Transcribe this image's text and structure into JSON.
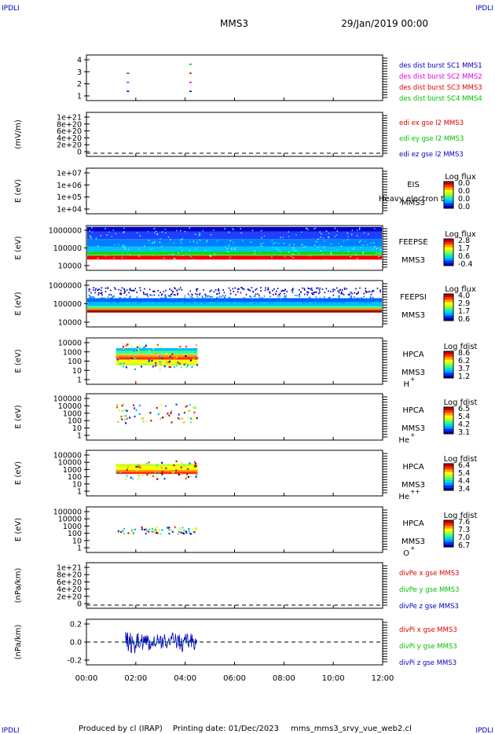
{
  "header": {
    "corner_label": "IPDLI",
    "title": "MMS3",
    "date": "29/Jan/2019 00:00"
  },
  "footer": {
    "produced_by": "Produced by cl (IRAP)",
    "printing_date": "Printing date: 01/Dec/2023",
    "filename": "mms_mms3_srvy_vue_web2.cl"
  },
  "colors": {
    "red": "#e00000",
    "green": "#00c000",
    "blue": "#0000c0",
    "magenta": "#e000e0"
  },
  "chart_data": [
    {
      "type": "scatter",
      "panel": "burst",
      "yticks": [
        "4",
        "3",
        "2",
        "1"
      ],
      "ylim": [
        0.5,
        4.5
      ],
      "legend": [
        {
          "label": "des dist burst SC1 MMS1",
          "color": "#0000c0"
        },
        {
          "label": "des dist burst SC2 MMS2",
          "color": "#e000e0"
        },
        {
          "label": "des dist burst SC3 MMS3",
          "color": "#e00000"
        },
        {
          "label": "des dist burst SC4 MMS4",
          "color": "#00c000"
        }
      ],
      "series": [
        {
          "name": "des dist burst SC1 MMS1",
          "x": [
            "01:38",
            "04:10"
          ],
          "y": [
            1,
            1
          ]
        },
        {
          "name": "des dist burst SC2 MMS2",
          "x": [
            "01:38",
            "04:10"
          ],
          "y": [
            2,
            2
          ]
        },
        {
          "name": "des dist burst SC3 MMS3",
          "x": [
            "01:38",
            "04:10"
          ],
          "y": [
            3,
            3
          ]
        },
        {
          "name": "des dist burst SC4 MMS4",
          "x": [
            "04:10"
          ],
          "y": [
            4
          ]
        }
      ]
    },
    {
      "type": "line",
      "panel": "edi",
      "ylabel": "(mV/m)",
      "yticks": [
        "1e+21",
        "8e+20",
        "6e+20",
        "4e+20",
        "2e+20",
        "0"
      ],
      "ylim": [
        0,
        1e+21
      ],
      "legend": [
        {
          "label": "edi ex gse l2 MMS3",
          "color": "#e00000"
        },
        {
          "label": "edi ey gse l2 MMS3",
          "color": "#00c000"
        },
        {
          "label": "edi ez gse l2 MMS3",
          "color": "#0000c0"
        }
      ]
    },
    {
      "type": "heatmap",
      "panel": "eis",
      "ylabel": "E (eV)",
      "yticks": [
        "1e+07",
        "1e+06",
        "1e+05",
        "1e+04"
      ],
      "ylim": [
        10000.0,
        10000000.0
      ],
      "scale": "log",
      "label": [
        "EIS",
        "MMS3"
      ],
      "overlay_text": "Heavy electron to",
      "colorbar_title": "Log flux",
      "colorbar_ticks": [
        "0.0",
        "0.0",
        "0.0",
        "0.0"
      ]
    },
    {
      "type": "heatmap",
      "panel": "feepse",
      "ylabel": "E (eV)",
      "yticks": [
        "1000000",
        "100000",
        "10000"
      ],
      "ylim": [
        10000.0,
        1000000.0
      ],
      "scale": "log",
      "label": [
        "FEEPSE",
        "MMS3"
      ],
      "colorbar_title": "Log flux",
      "colorbar_ticks": [
        "2.8",
        "1.7",
        "0.6",
        "-0.4"
      ]
    },
    {
      "type": "heatmap",
      "panel": "feepsi",
      "ylabel": "E (eV)",
      "yticks": [
        "1000000",
        "100000",
        "10000"
      ],
      "ylim": [
        10000.0,
        1000000.0
      ],
      "scale": "log",
      "label": [
        "FEEPSI",
        "MMS3"
      ],
      "colorbar_title": "Log flux",
      "colorbar_ticks": [
        "4.0",
        "2.9",
        "1.7",
        "0.6"
      ]
    },
    {
      "type": "heatmap",
      "panel": "hpca_h",
      "ylabel": "E (eV)",
      "yticks": [
        "10000",
        "1000",
        "100",
        "10",
        "1"
      ],
      "ylim": [
        1,
        100000.0
      ],
      "scale": "log",
      "label": [
        "HPCA",
        "MMS3"
      ],
      "species": "H",
      "charge": "+",
      "colorbar_title": "Log fdist",
      "colorbar_ticks": [
        "8.6",
        "6.2",
        "3.7",
        "1.2"
      ],
      "x_range": [
        "01:12",
        "04:30"
      ]
    },
    {
      "type": "heatmap",
      "panel": "hpca_he",
      "ylabel": "E (eV)",
      "yticks": [
        "100000",
        "10000",
        "1000",
        "100",
        "10",
        "1"
      ],
      "ylim": [
        1,
        100000.0
      ],
      "scale": "log",
      "label": [
        "HPCA",
        "MMS3"
      ],
      "species": "He",
      "charge": "+",
      "colorbar_title": "Log fdist",
      "colorbar_ticks": [
        "6.5",
        "5.4",
        "4.2",
        "3.1"
      ],
      "x_range": [
        "01:12",
        "04:30"
      ]
    },
    {
      "type": "heatmap",
      "panel": "hpca_hepp",
      "ylabel": "E (eV)",
      "yticks": [
        "100000",
        "10000",
        "1000",
        "100",
        "10",
        "1"
      ],
      "ylim": [
        1,
        100000.0
      ],
      "scale": "log",
      "label": [
        "HPCA",
        "MMS3"
      ],
      "species": "He",
      "charge": "++",
      "colorbar_title": "Log fdist",
      "colorbar_ticks": [
        "6.4",
        "5.4",
        "4.4",
        "3.4"
      ],
      "x_range": [
        "01:12",
        "04:30"
      ]
    },
    {
      "type": "heatmap",
      "panel": "hpca_o",
      "ylabel": "E (eV)",
      "yticks": [
        "100000",
        "10000",
        "1000",
        "100",
        "10",
        "1"
      ],
      "ylim": [
        1,
        100000.0
      ],
      "scale": "log",
      "label": [
        "HPCA",
        "MMS3"
      ],
      "species": "O",
      "charge": "+",
      "colorbar_title": "Log fdist",
      "colorbar_ticks": [
        "7.6",
        "7.3",
        "7.0",
        "6.7"
      ],
      "x_range": [
        "01:12",
        "04:30"
      ]
    },
    {
      "type": "line",
      "panel": "divpe",
      "ylabel": "(nPa/km)",
      "yticks": [
        "1e+21",
        "8e+20",
        "6e+20",
        "4e+20",
        "2e+20",
        "0"
      ],
      "ylim": [
        0,
        1e+21
      ],
      "legend": [
        {
          "label": "divPe x gse MMS3",
          "color": "#e00000"
        },
        {
          "label": "divPe y gse MMS3",
          "color": "#00c000"
        },
        {
          "label": "divPe z gse MMS3",
          "color": "#0000c0"
        }
      ]
    },
    {
      "type": "line",
      "panel": "divpi",
      "ylabel": "(nPa/km)",
      "yticks": [
        "0.2",
        "0.0",
        "-0.2"
      ],
      "ylim": [
        -0.3,
        0.3
      ],
      "legend": [
        {
          "label": "divPi x gse MMS3",
          "color": "#e00000"
        },
        {
          "label": "divPi y gse MMS3",
          "color": "#00c000"
        },
        {
          "label": "divPi z gse MMS3",
          "color": "#0000c0"
        }
      ],
      "series": [
        {
          "name": "divPi z gse MMS3",
          "x_range": [
            "01:35",
            "04:30"
          ],
          "y_range": [
            -0.1,
            0.1
          ]
        }
      ]
    }
  ],
  "xaxis": {
    "ticks": [
      "00:00",
      "02:00",
      "04:00",
      "06:00",
      "08:00",
      "10:00",
      "12:00"
    ],
    "range": [
      "00:00",
      "12:00"
    ]
  }
}
